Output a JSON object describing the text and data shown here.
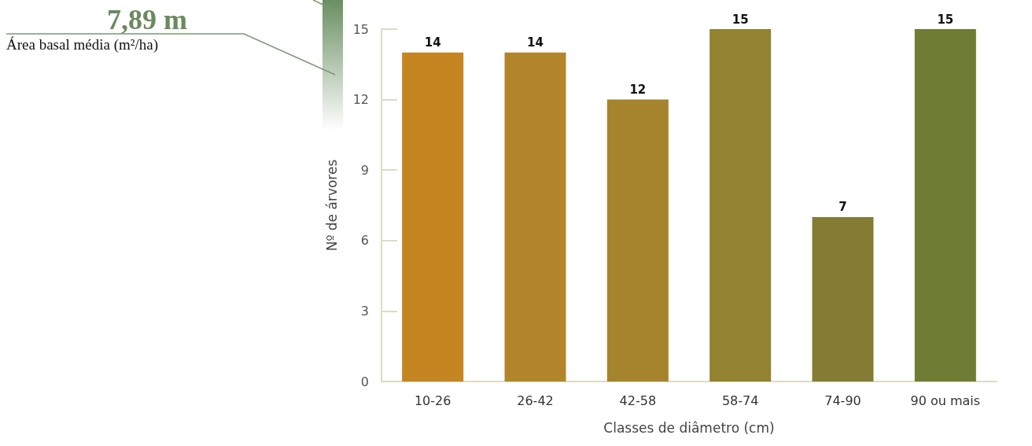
{
  "chart_data": {
    "type": "bar",
    "xlabel": "Classes de diâmetro (cm)",
    "ylabel": "Nº de árvores",
    "categories": [
      "10-26",
      "26-42",
      "42-58",
      "58-74",
      "74-90",
      "90 ou mais"
    ],
    "values": [
      14,
      14,
      12,
      15,
      7,
      15
    ],
    "colors": [
      "#c58521",
      "#b3852a",
      "#a5842c",
      "#93822f",
      "#847c33",
      "#6f7d34"
    ],
    "ylim": [
      0,
      15
    ],
    "yticks": [
      0,
      3,
      6,
      9,
      12,
      15
    ],
    "grid": false,
    "data_labels": true,
    "annotations": [
      "7,89 m",
      "Área basal média (m²/ha)"
    ]
  }
}
